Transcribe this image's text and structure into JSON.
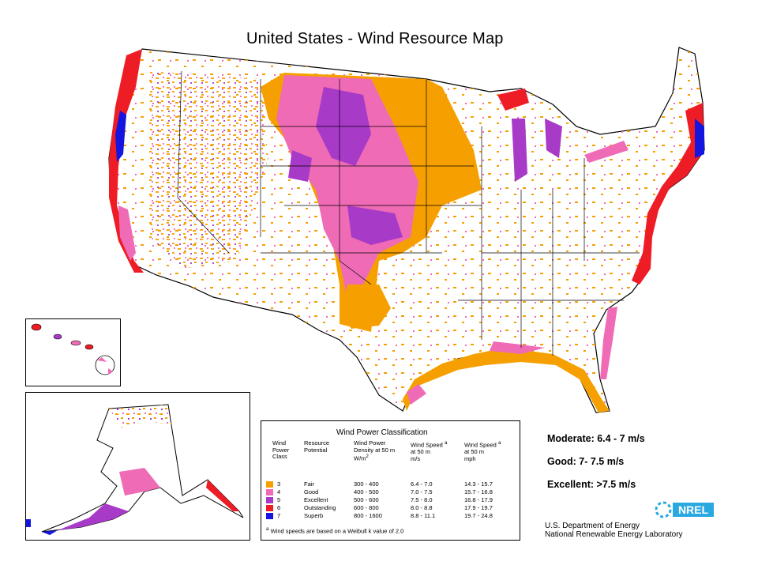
{
  "title": "United States - Wind Resource Map",
  "legend": {
    "title": "Wind Power Classification",
    "headers": {
      "class": [
        "Wind",
        "Power",
        "Class"
      ],
      "potential": [
        "Resource",
        "Potential"
      ],
      "density": [
        "Wind Power",
        "Density at 50 m",
        "W/m"
      ],
      "speed_ms": [
        "Wind Speed",
        "at 50 m",
        "m/s"
      ],
      "speed_mph": [
        "Wind Speed",
        "at 50 m",
        "mph"
      ]
    },
    "superscript_a": "a",
    "superscript_2": "2",
    "rows": [
      {
        "class": "3",
        "potential": "Fair",
        "density": "300 - 400",
        "ms": "6.4 - 7.0",
        "mph": "14.3 - 15.7",
        "color": "#f5a000"
      },
      {
        "class": "4",
        "potential": "Good",
        "density": "400 - 500",
        "ms": "7.0 - 7.5",
        "mph": "15.7 - 16.8",
        "color": "#ef6bb6"
      },
      {
        "class": "5",
        "potential": "Excellent",
        "density": "500 - 600",
        "ms": "7.5 - 8.0",
        "mph": "16.8 - 17.9",
        "color": "#a83ac8"
      },
      {
        "class": "6",
        "potential": "Outstanding",
        "density": "600 - 800",
        "ms": "8.0 - 8.8",
        "mph": "17.9 - 19.7",
        "color": "#ee1c25"
      },
      {
        "class": "7",
        "potential": "Superb",
        "density": "800 - 1600",
        "ms": "8.8 - 11.1",
        "mph": "19.7 - 24.8",
        "color": "#1515e0"
      }
    ],
    "footnote": "Wind speeds are based on a Weibull k value of 2.0"
  },
  "notes": {
    "moderate": "Moderate: 6.4 - 7 m/s",
    "good": "Good: 7- 7.5 m/s",
    "excellent": "Excellent: >7.5 m/s"
  },
  "source": {
    "line1": "U.S. Department of Energy",
    "line2": "National Renewable Energy Laboratory",
    "logo_text": "NREL"
  }
}
